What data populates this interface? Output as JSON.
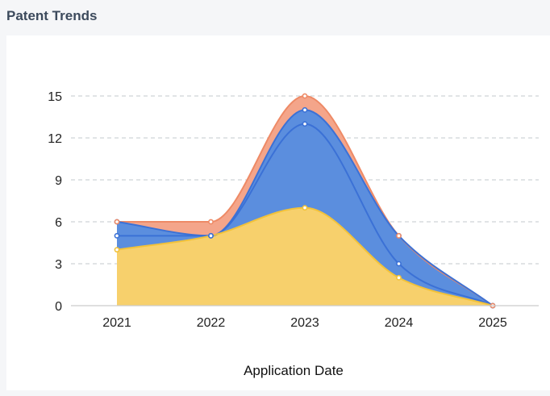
{
  "panel": {
    "title": "Patent Trends"
  },
  "chart_data": {
    "type": "area",
    "stacked": true,
    "smooth": true,
    "categories": [
      "2021",
      "2022",
      "2023",
      "2024",
      "2025"
    ],
    "ylim": [
      0,
      15
    ],
    "yticks": [
      0,
      3,
      6,
      9,
      12,
      15
    ],
    "xlabel": "Application Date",
    "ylabel": "",
    "grid": "horizontal-dashed",
    "legend": "none",
    "series": [
      {
        "values": [
          4,
          5,
          7,
          2,
          0
        ],
        "color": "#f7d06c",
        "line_color": "#f2c23a"
      },
      {
        "values": [
          1,
          0,
          6,
          1,
          0
        ],
        "color": "#5b8ede",
        "line_color": "#3b71d6"
      },
      {
        "values": [
          1,
          0,
          1,
          2,
          0
        ],
        "color": "#5b8ede",
        "line_color": "#3b71d6"
      },
      {
        "values": [
          0,
          1,
          1,
          0,
          0
        ],
        "color": "#f4a58a",
        "line_color": "#ee8a66"
      }
    ],
    "axis_color": "#cccccc",
    "grid_color": "#cfd3d8"
  }
}
